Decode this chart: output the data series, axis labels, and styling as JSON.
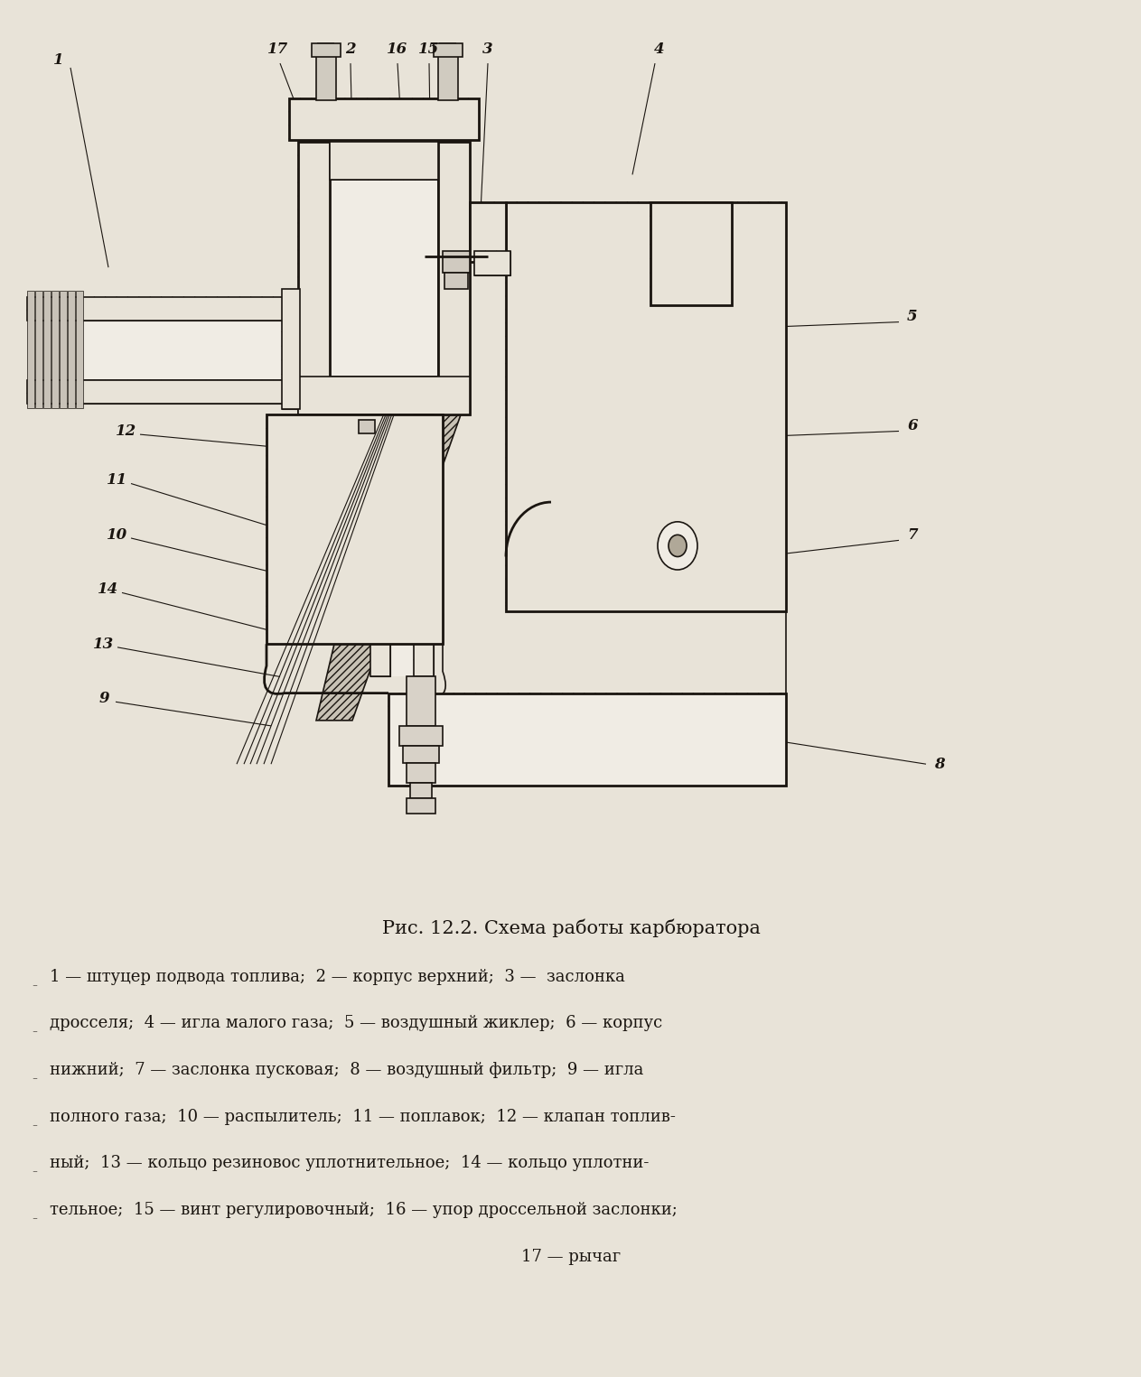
{
  "bg_color": "#d8d3c8",
  "paper_color": "#e8e3d8",
  "line_color": "#1a1510",
  "hatch_color": "#2a2018",
  "title": "Рис. 12.2. Схема работы карбюратора",
  "title_fontsize": 15,
  "desc_lines": [
    "1 — штуцер подвода топлива;  2 — корпус верхний;  3 —  заслонка",
    "дросселя;  4 — игла малого газа;  5 — воздушный жиклер;  6 — корпус",
    "нижний;  7 — заслонка пусковая;  8 — воздушный фильтр;  9 — игла",
    "полного газа;  10 — распылитель;  11 — поплавок;  12 — клапан топлив-",
    "ный;  13 — кольцо резиновос уплотнительное;  14 — кольцо уплотни-",
    "тельное;  15 — винт регулировочный;  16 — упор дроссельной заслонки;",
    "17 — рычаг"
  ],
  "desc_fontsize": 13,
  "label_fontsize": 12,
  "figsize": [
    12.63,
    15.25
  ],
  "dpi": 100
}
